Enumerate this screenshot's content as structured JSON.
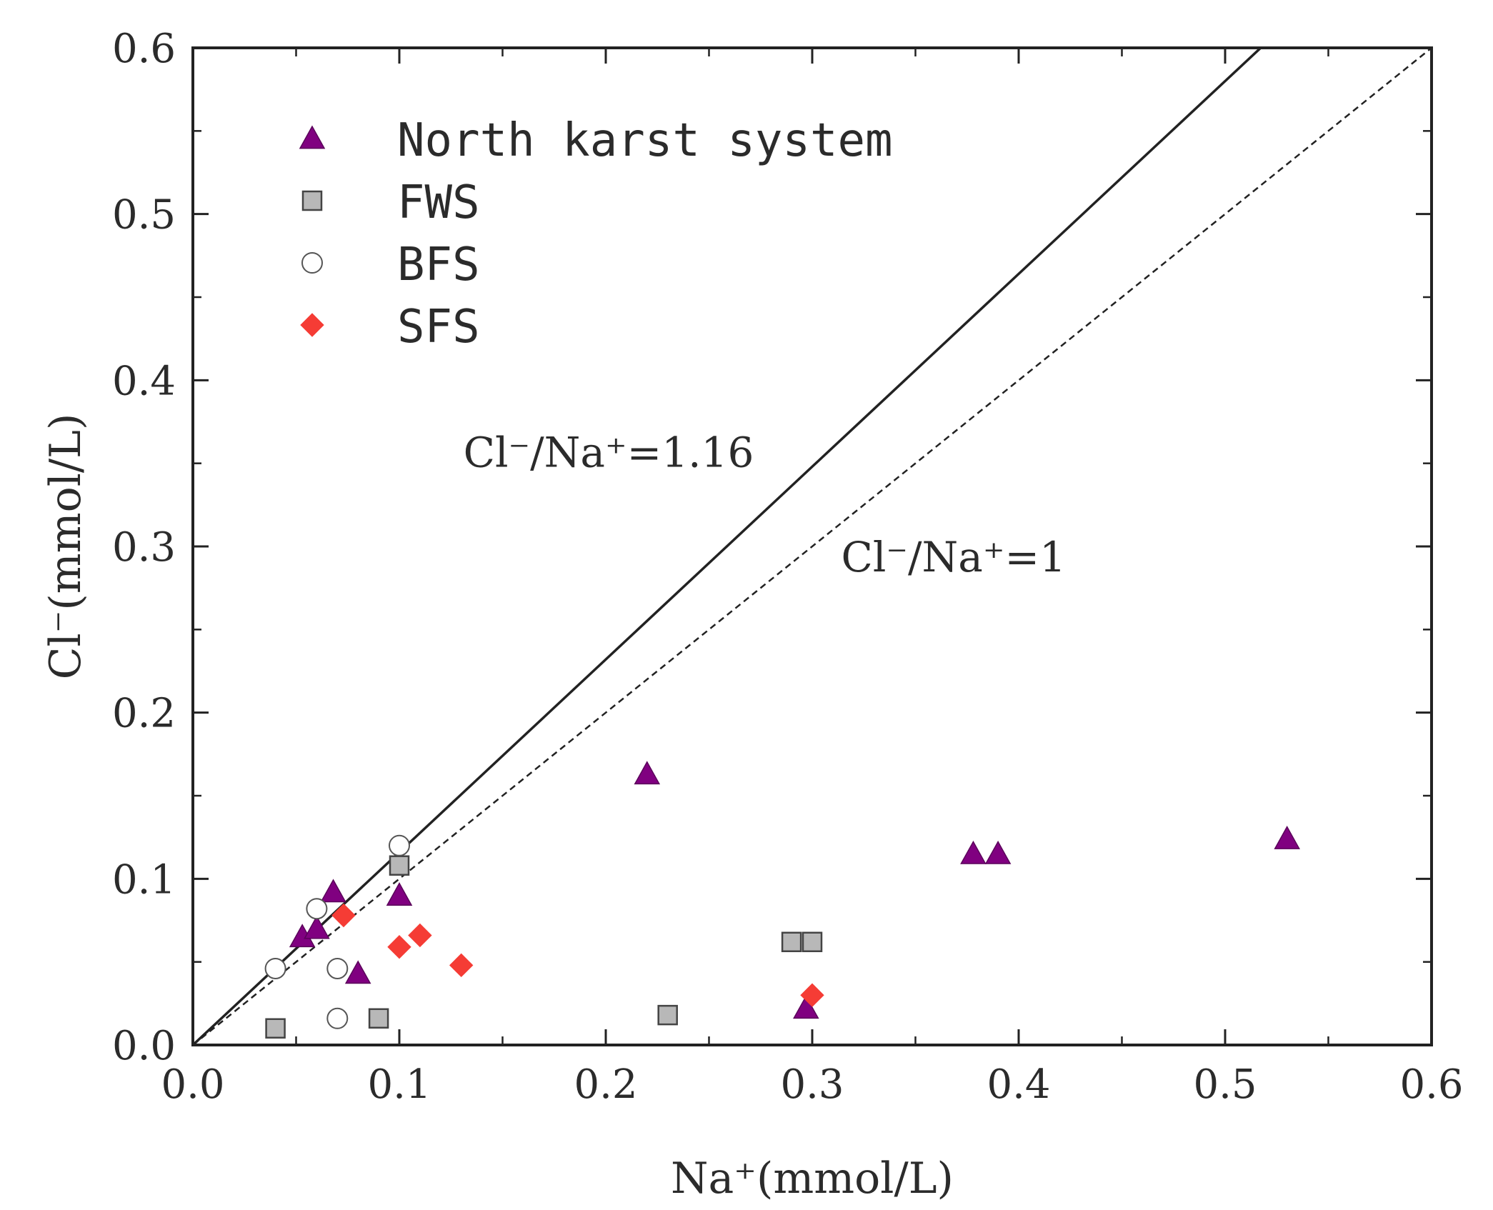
{
  "chart_data": {
    "type": "scatter",
    "xlabel": "Na⁺(mmol/L)",
    "ylabel": "Cl⁻(mmol/L)",
    "xlim": [
      0,
      0.6
    ],
    "ylim": [
      0,
      0.6
    ],
    "x_ticks": [
      "0.0",
      "0.1",
      "0.2",
      "0.3",
      "0.4",
      "0.5",
      "0.6"
    ],
    "y_ticks": [
      "0.0",
      "0.1",
      "0.2",
      "0.3",
      "0.4",
      "0.5",
      "0.6"
    ],
    "grid": false,
    "legend_position": "top-left",
    "series": [
      {
        "name": "North karst system",
        "marker": "triangle",
        "color": "#800080",
        "points": [
          [
            0.053,
            0.065
          ],
          [
            0.06,
            0.07
          ],
          [
            0.068,
            0.092
          ],
          [
            0.08,
            0.043
          ],
          [
            0.1,
            0.09
          ],
          [
            0.22,
            0.163
          ],
          [
            0.297,
            0.022
          ],
          [
            0.378,
            0.115
          ],
          [
            0.39,
            0.115
          ],
          [
            0.53,
            0.124
          ]
        ]
      },
      {
        "name": "FWS",
        "marker": "square",
        "color": "#b8b8b8",
        "points": [
          [
            0.04,
            0.01
          ],
          [
            0.09,
            0.016
          ],
          [
            0.1,
            0.108
          ],
          [
            0.23,
            0.018
          ],
          [
            0.29,
            0.062
          ],
          [
            0.3,
            0.062
          ]
        ]
      },
      {
        "name": "BFS",
        "marker": "circle",
        "color": "#ffffff",
        "points": [
          [
            0.04,
            0.046
          ],
          [
            0.06,
            0.082
          ],
          [
            0.07,
            0.046
          ],
          [
            0.07,
            0.016
          ],
          [
            0.1,
            0.12
          ]
        ]
      },
      {
        "name": "SFS",
        "marker": "diamond",
        "color": "#f53c35",
        "points": [
          [
            0.073,
            0.078
          ],
          [
            0.1,
            0.059
          ],
          [
            0.11,
            0.066
          ],
          [
            0.13,
            0.048
          ],
          [
            0.3,
            0.03
          ]
        ]
      }
    ],
    "reference_lines": [
      {
        "label": "Cl⁻/Na⁺=1.16",
        "slope": 1.16,
        "style": "solid",
        "label_anchor": [
          0.131,
          0.348
        ]
      },
      {
        "label": "Cl⁻/Na⁺=1",
        "slope": 1,
        "style": "dashed",
        "label_anchor": [
          0.314,
          0.285
        ]
      }
    ]
  }
}
